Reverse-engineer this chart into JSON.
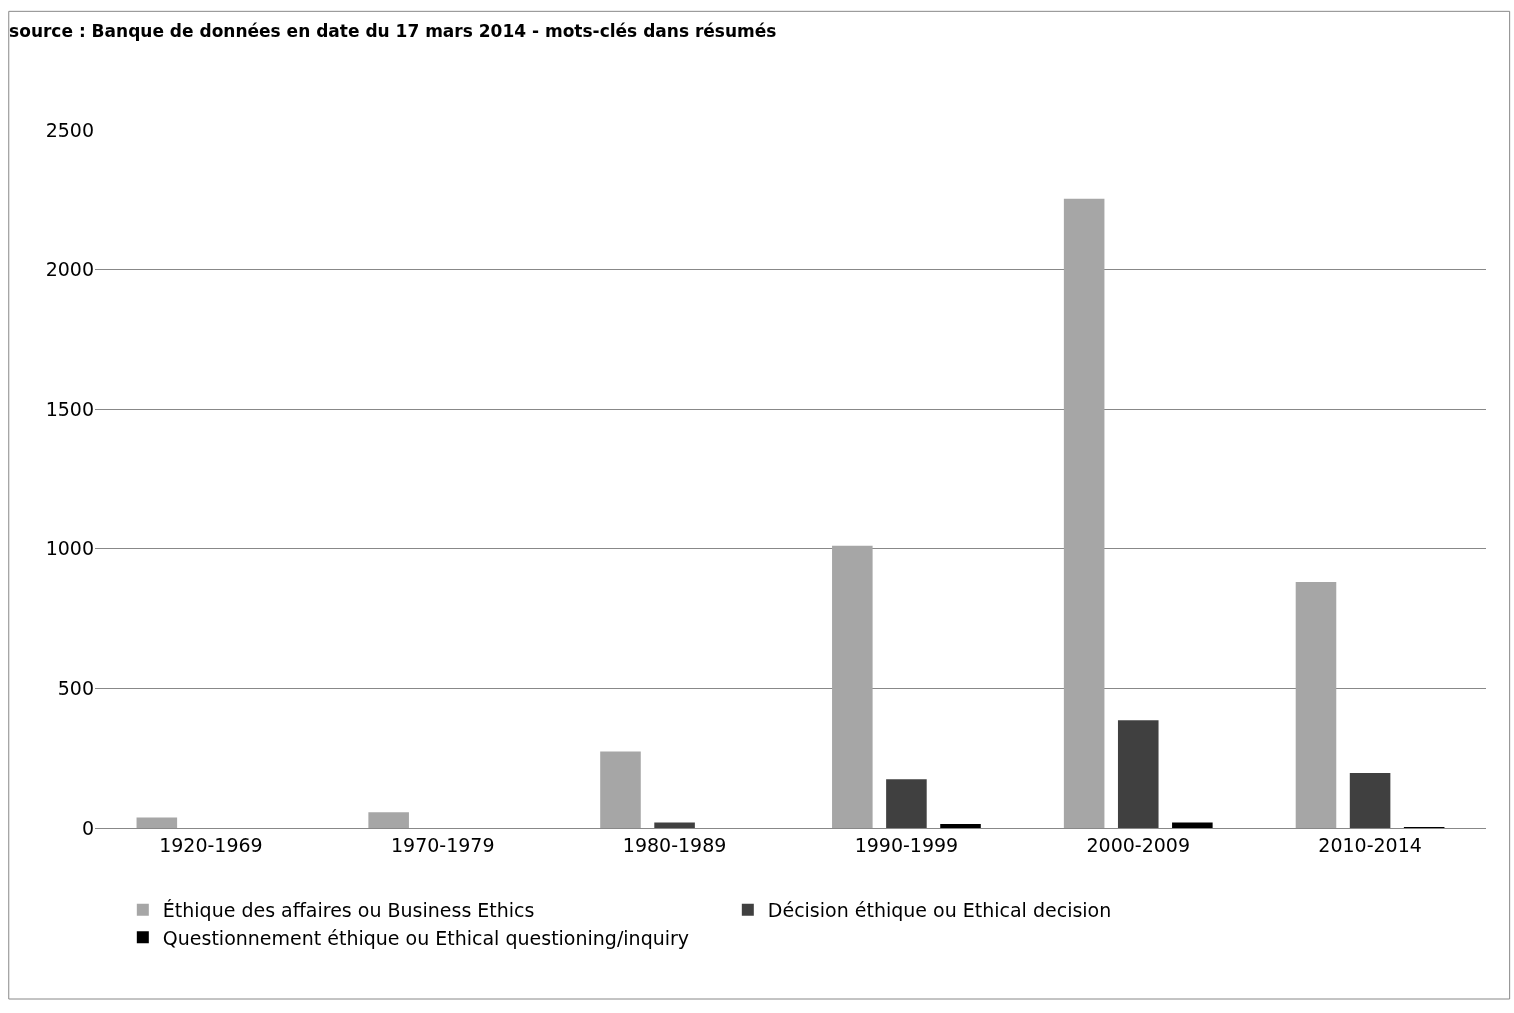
{
  "chart_data": {
    "type": "bar",
    "title": "source : Banque de données en date du 17 mars 2014 - mots-clés dans résumés",
    "categories": [
      "1920-1969",
      "1970-1979",
      "1980-1989",
      "1990-1999",
      "2000-2009",
      "2010-2014"
    ],
    "series": [
      {
        "name": "Éthique des affaires ou Business Ethics",
        "color": "#a6a6a6",
        "values": [
          38,
          56,
          274,
          1011,
          2254,
          881
        ]
      },
      {
        "name": "Décision éthique ou Ethical decision",
        "color": "#404040",
        "values": [
          0,
          0,
          20,
          175,
          386,
          197
        ]
      },
      {
        "name": "Questionnement éthique ou Ethical questioning/inquiry",
        "color": "#000000",
        "values": [
          0,
          0,
          0,
          14,
          20,
          3
        ]
      }
    ],
    "ylim": [
      0,
      2500
    ],
    "yticks": [
      0,
      500,
      1000,
      1500,
      2000,
      2500
    ],
    "grid": "y",
    "legend": "bottom"
  }
}
